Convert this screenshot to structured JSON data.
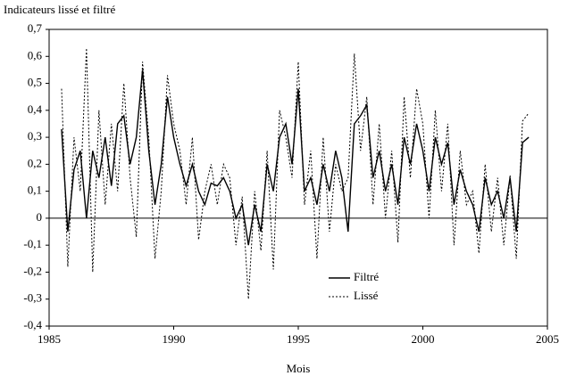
{
  "chart_data": {
    "type": "line",
    "title": "Indicateurs lissé et filtré",
    "x_label": "Mois",
    "xlim": [
      1985,
      2005
    ],
    "xticks": [
      1985,
      1990,
      1995,
      2000,
      2005
    ],
    "ylim": [
      -0.4,
      0.7
    ],
    "yticks": [
      {
        "value": -0.4,
        "label": "-0,4"
      },
      {
        "value": -0.3,
        "label": "-0,3"
      },
      {
        "value": -0.2,
        "label": "-0,2"
      },
      {
        "value": -0.1,
        "label": "-0,1"
      },
      0,
      {
        "value": 0.1,
        "label": "0,1"
      },
      {
        "value": 0.2,
        "label": "0,2"
      },
      {
        "value": 0.3,
        "label": "0,3"
      },
      {
        "value": 0.4,
        "label": "0,4"
      },
      {
        "value": 0.5,
        "label": "0,5"
      },
      {
        "value": 0.6,
        "label": "0,6"
      },
      {
        "value": 0.7,
        "label": "0,7"
      }
    ],
    "grid": false,
    "x": [
      1985.5,
      1985.75,
      1986,
      1986.25,
      1986.5,
      1986.75,
      1987,
      1987.25,
      1987.5,
      1987.75,
      1988,
      1988.25,
      1988.5,
      1988.75,
      1989,
      1989.25,
      1989.5,
      1989.75,
      1990,
      1990.25,
      1990.5,
      1990.75,
      1991,
      1991.25,
      1991.5,
      1991.75,
      1992,
      1992.25,
      1992.5,
      1992.75,
      1993,
      1993.25,
      1993.5,
      1993.75,
      1994,
      1994.25,
      1994.5,
      1994.75,
      1995,
      1995.25,
      1995.5,
      1995.75,
      1996,
      1996.25,
      1996.5,
      1996.75,
      1997,
      1997.25,
      1997.5,
      1997.75,
      1998,
      1998.25,
      1998.5,
      1998.75,
      1999,
      1999.25,
      1999.5,
      1999.75,
      2000,
      2000.25,
      2000.5,
      2000.75,
      2001,
      2001.25,
      2001.5,
      2001.75,
      2002,
      2002.25,
      2002.5,
      2002.75,
      2003,
      2003.25,
      2003.5,
      2003.75,
      2004,
      2004.25
    ],
    "series": [
      {
        "name": "Filtré",
        "color": "#000000",
        "dash": "solid",
        "values": [
          0.33,
          -0.05,
          0.18,
          0.25,
          0.0,
          0.25,
          0.15,
          0.3,
          0.12,
          0.35,
          0.38,
          0.2,
          0.3,
          0.55,
          0.25,
          0.05,
          0.2,
          0.45,
          0.3,
          0.2,
          0.12,
          0.2,
          0.1,
          0.05,
          0.13,
          0.12,
          0.15,
          0.1,
          0.0,
          0.05,
          -0.1,
          0.05,
          -0.05,
          0.2,
          0.1,
          0.3,
          0.35,
          0.2,
          0.48,
          0.1,
          0.15,
          0.05,
          0.2,
          0.1,
          0.25,
          0.15,
          -0.05,
          0.35,
          0.38,
          0.42,
          0.15,
          0.25,
          0.1,
          0.2,
          0.05,
          0.3,
          0.2,
          0.35,
          0.25,
          0.1,
          0.3,
          0.2,
          0.28,
          0.05,
          0.18,
          0.1,
          0.05,
          -0.05,
          0.15,
          0.05,
          0.1,
          0.0,
          0.15,
          -0.05,
          0.28,
          0.3
        ]
      },
      {
        "name": "Lissé",
        "color": "#000000",
        "dash": "dotted",
        "values": [
          0.48,
          -0.18,
          0.3,
          0.1,
          0.63,
          -0.2,
          0.4,
          0.05,
          0.35,
          0.1,
          0.5,
          0.15,
          -0.07,
          0.58,
          0.3,
          -0.15,
          0.1,
          0.53,
          0.35,
          0.25,
          0.05,
          0.3,
          -0.08,
          0.1,
          0.2,
          0.05,
          0.2,
          0.15,
          -0.1,
          0.08,
          -0.3,
          0.1,
          -0.12,
          0.25,
          -0.19,
          0.4,
          0.3,
          0.15,
          0.58,
          0.05,
          0.25,
          -0.15,
          0.3,
          -0.05,
          0.2,
          0.1,
          0.15,
          0.61,
          0.25,
          0.45,
          0.05,
          0.35,
          0.0,
          0.25,
          -0.09,
          0.45,
          0.15,
          0.48,
          0.35,
          0.0,
          0.4,
          0.1,
          0.35,
          -0.1,
          0.25,
          0.05,
          0.1,
          -0.13,
          0.2,
          -0.05,
          0.15,
          -0.1,
          0.16,
          -0.15,
          0.36,
          0.39
        ]
      }
    ]
  }
}
